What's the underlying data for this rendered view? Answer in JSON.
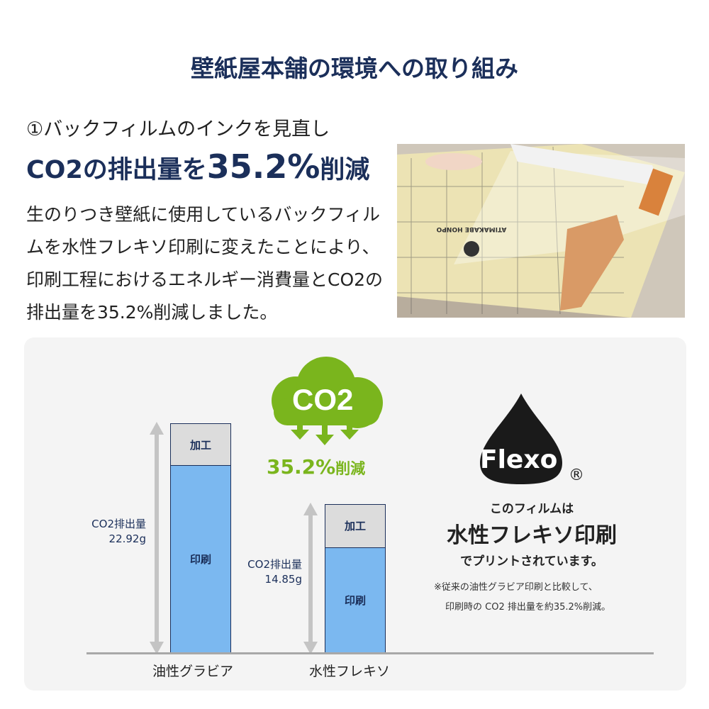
{
  "title": "壁紙屋本舗の環境への取り組み",
  "section": {
    "subtitle": "①バックフィルムのインクを見直し",
    "headline_pre": "CO2の排出量を",
    "headline_value": "35.2%",
    "headline_post": "削減",
    "body": "生のりつき壁紙に使用しているバックフィルムを水性フレキソ印刷に変えたことにより、印刷工程におけるエネルギー消費量とCO2の排出量を35.2%削減しました。"
  },
  "photo": {
    "film_print": "ATIMAKABE HONPO"
  },
  "co2_badge": {
    "text": "CO2",
    "reduction": "35.2%",
    "reduction_suffix": "削減",
    "color": "#7ab51d"
  },
  "chart_data": {
    "type": "bar",
    "stacked": true,
    "categories": [
      "油性グラビア",
      "水性フレキソ"
    ],
    "segment_labels": {
      "processing": "加工",
      "printing": "印刷"
    },
    "series": [
      {
        "name": "加工",
        "values": [
          4.25,
          4.35
        ],
        "color": "#dcdcdc"
      },
      {
        "name": "印刷",
        "values": [
          18.67,
          10.5
        ],
        "color": "#7bb8f0"
      }
    ],
    "totals": [
      22.92,
      14.85
    ],
    "total_labels": [
      {
        "line1": "CO2排出量",
        "line2": "22.92g"
      },
      {
        "line1": "CO2排出量",
        "line2": "14.85g"
      }
    ],
    "ylim": [
      0,
      22.92
    ]
  },
  "flexo": {
    "logo_text": "Flexo",
    "registered": "®",
    "line1": "このフィルムは",
    "line2": "水性フレキソ印刷",
    "line3": "でプリントされています。",
    "note1": "※従来の油性グラビア印刷と比較して、",
    "note2": "印刷時の CO2 排出量を約35.2%削減。"
  }
}
